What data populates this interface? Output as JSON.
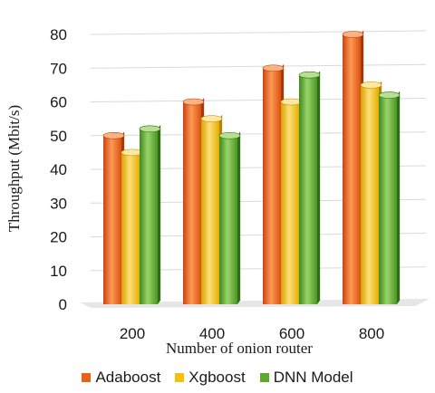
{
  "chart_data": {
    "type": "bar",
    "title": "",
    "xlabel": "Number of onion router",
    "ylabel": "Throughput (Mbit/s)",
    "categories": [
      "200",
      "400",
      "600",
      "800"
    ],
    "ylim": [
      0,
      80
    ],
    "yticks": [
      0,
      10,
      20,
      30,
      40,
      50,
      60,
      70,
      80
    ],
    "grid": true,
    "legend_position": "bottom",
    "series": [
      {
        "name": "Adaboost",
        "values": [
          50,
          60,
          70,
          80
        ],
        "color": "#e8621c"
      },
      {
        "name": "Xgboost",
        "values": [
          45,
          55,
          60,
          65
        ],
        "color": "#f5c20a"
      },
      {
        "name": "DNN Model",
        "values": [
          52,
          50,
          68,
          62
        ],
        "color": "#5ea82e"
      }
    ]
  }
}
